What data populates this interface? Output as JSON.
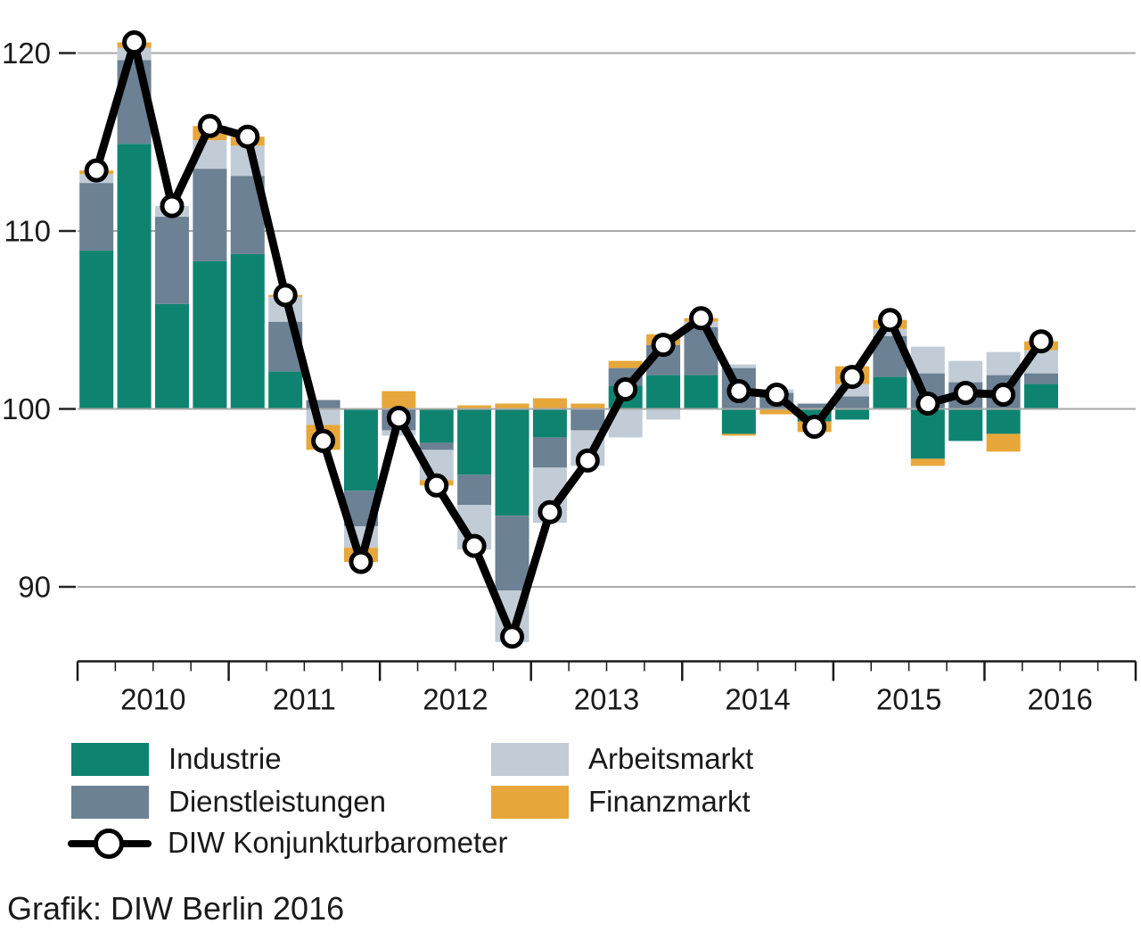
{
  "chart_data": {
    "type": "bar",
    "subtype": "stacked-bar-with-line",
    "title": "",
    "baseline": 100,
    "unit_note": "bar segments are contributions (deviations from 100) stacked above/below the 100 line",
    "categories": [
      "2010 Q1",
      "2010 Q2",
      "2010 Q3",
      "2010 Q4",
      "2011 Q1",
      "2011 Q2",
      "2011 Q3",
      "2011 Q4",
      "2012 Q1",
      "2012 Q2",
      "2012 Q3",
      "2012 Q4",
      "2013 Q1",
      "2013 Q2",
      "2013 Q3",
      "2013 Q4",
      "2014 Q1",
      "2014 Q2",
      "2014 Q3",
      "2014 Q4",
      "2015 Q1",
      "2015 Q2",
      "2015 Q3",
      "2015 Q4",
      "2016 Q1",
      "2016 Q2"
    ],
    "series": [
      {
        "name": "Industrie",
        "color": "#0E8470",
        "values": [
          8.9,
          14.9,
          5.9,
          8.3,
          8.7,
          2.1,
          0.0,
          -4.6,
          0.0,
          -1.9,
          -3.7,
          -6.0,
          -1.6,
          0.0,
          1.3,
          1.9,
          1.9,
          -1.4,
          0.0,
          -0.7,
          -0.6,
          1.8,
          -2.8,
          -1.8,
          -1.4,
          1.4
        ]
      },
      {
        "name": "Dienstleistungen",
        "color": "#6C8193",
        "values": [
          3.8,
          4.7,
          4.9,
          5.2,
          4.4,
          2.8,
          0.5,
          -2.0,
          -1.2,
          -0.4,
          -1.7,
          -4.2,
          -1.7,
          -1.2,
          1.0,
          1.7,
          2.7,
          2.3,
          0.9,
          0.3,
          0.7,
          2.3,
          2.0,
          1.5,
          1.9,
          0.6
        ]
      },
      {
        "name": "Arbeitsmarkt",
        "color": "#C1CCD6",
        "values": [
          0.5,
          0.7,
          0.6,
          1.6,
          1.7,
          1.4,
          -0.9,
          -1.2,
          -0.3,
          -1.7,
          -2.5,
          -2.9,
          -3.1,
          -2.0,
          -1.6,
          -0.6,
          0.3,
          0.2,
          0.2,
          0.0,
          0.7,
          0.4,
          1.5,
          1.2,
          1.3,
          1.3
        ]
      },
      {
        "name": "Finanzmarkt",
        "color": "#E7A73B",
        "values": [
          0.2,
          0.3,
          0.0,
          0.8,
          0.5,
          0.1,
          -1.4,
          -0.8,
          1.0,
          -0.3,
          0.2,
          0.3,
          0.6,
          0.3,
          0.4,
          0.6,
          0.2,
          -0.1,
          -0.3,
          -0.6,
          1.0,
          0.5,
          -0.4,
          0.0,
          -1.0,
          0.5
        ]
      }
    ],
    "line_series": {
      "name": "DIW Konjunkturbarometer",
      "color": "#000000",
      "values": [
        113.4,
        120.6,
        111.4,
        115.9,
        115.3,
        106.4,
        98.2,
        91.4,
        99.5,
        95.7,
        92.3,
        87.2,
        94.2,
        97.1,
        101.1,
        103.6,
        105.1,
        101.0,
        100.8,
        99.0,
        101.8,
        105.0,
        100.3,
        100.9,
        100.8,
        103.8
      ]
    },
    "x_year_labels": [
      "2010",
      "2011",
      "2012",
      "2013",
      "2014",
      "2015",
      "2016"
    ],
    "y_ticks": [
      120,
      110,
      100,
      90
    ],
    "ylim": [
      86,
      122
    ],
    "grid": true,
    "gridline_color": "#A9A9A9",
    "axis_color": "#1a1a1a",
    "legend_position": "bottom"
  },
  "legend": {
    "items": [
      {
        "label": "Industrie",
        "color": "#0E8470"
      },
      {
        "label": "Dienstleistungen",
        "color": "#6C8193"
      },
      {
        "label": "Arbeitsmarkt",
        "color": "#C1CCD6"
      },
      {
        "label": "Finanzmarkt",
        "color": "#E7A73B"
      }
    ],
    "line_item": {
      "label": "DIW Konjunkturbarometer"
    }
  },
  "caption": {
    "text": "Grafik: DIW Berlin 2016"
  }
}
